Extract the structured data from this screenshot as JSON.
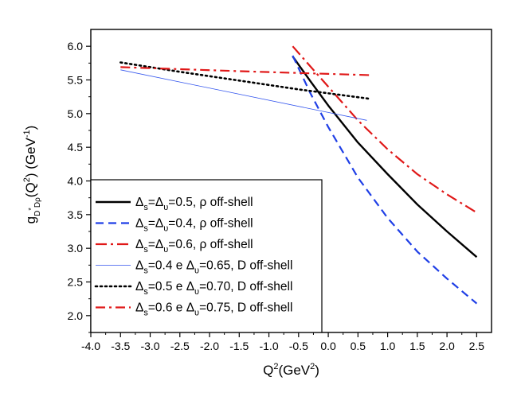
{
  "chart_data": {
    "type": "line",
    "xlabel": {
      "base": "Q",
      "sup": "2",
      "rest": "(GeV",
      "sup2": "2",
      "end": ")"
    },
    "ylabel": {
      "g": "g",
      "gsub1": "D",
      "gsup": "*",
      "gsub2": "Dρ",
      "q": "(Q",
      "qsup": "2",
      "mid": ") (GeV",
      "unitsup": "-1",
      "end": ")"
    },
    "xlim": [
      -4.0,
      2.75
    ],
    "ylim": [
      1.75,
      6.25
    ],
    "xticks": [
      "-4.0",
      "-3.5",
      "-3.0",
      "-2.5",
      "-2.0",
      "-1.5",
      "-1.0",
      "-0.5",
      "0.0",
      "0.5",
      "1.0",
      "1.5",
      "2.0",
      "2.5"
    ],
    "xtick_values": [
      -4.0,
      -3.5,
      -3.0,
      -2.5,
      -2.0,
      -1.5,
      -1.0,
      -0.5,
      0.0,
      0.5,
      1.0,
      1.5,
      2.0,
      2.5
    ],
    "yticks": [
      "2.0",
      "2.5",
      "3.0",
      "3.5",
      "4.0",
      "4.5",
      "5.0",
      "5.5",
      "6.0"
    ],
    "ytick_values": [
      2.0,
      2.5,
      3.0,
      3.5,
      4.0,
      4.5,
      5.0,
      5.5,
      6.0
    ],
    "grid": false,
    "legend_position": "bottom-left",
    "series": [
      {
        "name": "Δs=Δυ=0.5, ρ off-shell",
        "legend": [
          "Δ",
          "s",
          "=Δ",
          "υ",
          "=0.5, ρ off-shell"
        ],
        "color": "#000000",
        "dash": "",
        "width": 2.4,
        "x": [
          -0.6,
          -0.3,
          0.0,
          0.5,
          1.0,
          1.5,
          2.0,
          2.5
        ],
        "y": [
          5.85,
          5.48,
          5.12,
          4.57,
          4.1,
          3.65,
          3.25,
          2.87
        ]
      },
      {
        "name": "Δs=Δυ=0.4, ρ off-shell",
        "legend": [
          "Δ",
          "s",
          "=Δ",
          "υ",
          "=0.4, ρ off-shell"
        ],
        "color": "#1f3fe6",
        "dash": "10,6",
        "width": 2.2,
        "x": [
          -0.6,
          -0.3,
          0.0,
          0.5,
          1.0,
          1.5,
          2.0,
          2.5
        ],
        "y": [
          5.86,
          5.3,
          4.8,
          4.05,
          3.45,
          2.95,
          2.55,
          2.18
        ]
      },
      {
        "name": "Δs=Δυ=0.6, ρ off-shell",
        "legend": [
          "Δ",
          "s",
          "=Δ",
          "υ",
          "=0.6, ρ off-shell"
        ],
        "color": "#e01818",
        "dash": "14,5,3,5",
        "width": 2.2,
        "x": [
          -0.6,
          -0.3,
          0.0,
          0.5,
          1.0,
          1.5,
          2.0,
          2.5
        ],
        "y": [
          6.0,
          5.7,
          5.4,
          4.9,
          4.47,
          4.1,
          3.8,
          3.53
        ]
      },
      {
        "name": "Δs=0.4 e Δυ=0.65, D off-shell",
        "legend": [
          "Δ",
          "s",
          "=0.4 e Δ",
          "υ",
          "=0.65, D off-shell"
        ],
        "color": "#3355ee",
        "dash": "",
        "width": 0.8,
        "x": [
          -3.5,
          0.65
        ],
        "y": [
          5.65,
          4.9
        ]
      },
      {
        "name": "Δs=0.5 e Δυ=0.70, D off-shell",
        "legend": [
          "Δ",
          "s",
          "=0.5 e Δ",
          "υ",
          "=0.70, D off-shell"
        ],
        "color": "#000000",
        "dash": "2,4",
        "width": 2.6,
        "x": [
          -3.5,
          -2.5,
          -1.5,
          -0.5,
          0.7
        ],
        "y": [
          5.76,
          5.62,
          5.49,
          5.36,
          5.22
        ]
      },
      {
        "name": "Δs=0.6 e Δυ=0.75, D off-shell",
        "legend": [
          "Δ",
          "s",
          "=0.6 e Δ",
          "υ",
          "=0.75, D off-shell"
        ],
        "color": "#e01818",
        "dash": "12,5,3,5",
        "width": 2.2,
        "x": [
          -3.5,
          -1.5,
          0.0,
          0.75
        ],
        "y": [
          5.69,
          5.63,
          5.59,
          5.57
        ]
      }
    ]
  }
}
